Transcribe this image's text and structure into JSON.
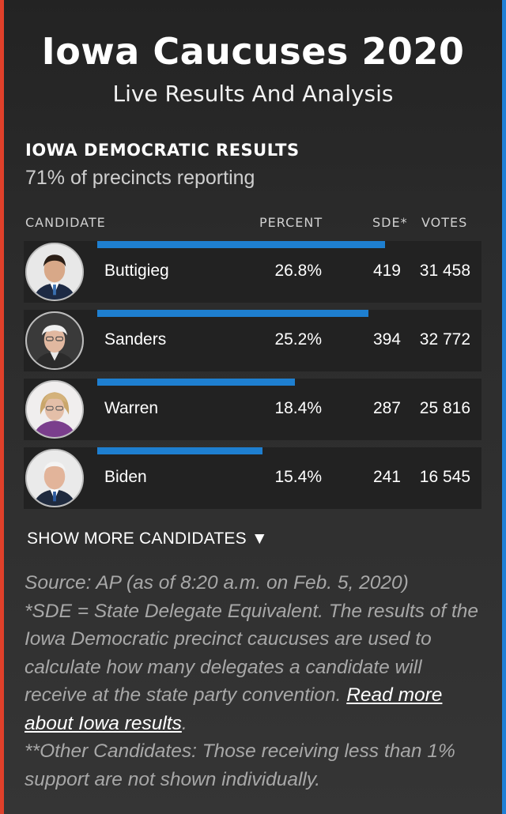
{
  "header": {
    "title": "Iowa Caucuses 2020",
    "subtitle": "Live Results And Analysis"
  },
  "results": {
    "section_title": "IOWA DEMOCRATIC RESULTS",
    "precincts": "71% of precincts reporting",
    "columns": {
      "candidate": "CANDIDATE",
      "percent": "PERCENT",
      "sde": "SDE*",
      "votes": "VOTES"
    },
    "bar_color": "#1e7fd0",
    "rows": [
      {
        "name": "Buttigieg",
        "percent": "26.8%",
        "sde": "419",
        "votes": "31 458",
        "percent_value": 26.8
      },
      {
        "name": "Sanders",
        "percent": "25.2%",
        "sde": "394",
        "votes": "32 772",
        "percent_value": 25.2
      },
      {
        "name": "Warren",
        "percent": "18.4%",
        "sde": "287",
        "votes": "25 816",
        "percent_value": 18.4
      },
      {
        "name": "Biden",
        "percent": "15.4%",
        "sde": "241",
        "votes": "16 545",
        "percent_value": 15.4
      }
    ],
    "show_more": "SHOW MORE CANDIDATES ▼"
  },
  "notes": {
    "source": "Source: AP (as of 8:20 a.m. on Feb. 5, 2020)",
    "sde_note": "*SDE = State Delegate Equivalent. The results of the Iowa Democratic precinct caucuses are used to calculate how many delegates a candidate will receive at the state party convention. ",
    "read_more_link": "Read more about Iowa results",
    "sde_note_end": ".",
    "other_note": "**Other Candidates: Those receiving less than 1% support are not shown individually."
  },
  "accent_colors": {
    "left_edge": "#e0402a",
    "right_edge": "#1f7fd6"
  }
}
